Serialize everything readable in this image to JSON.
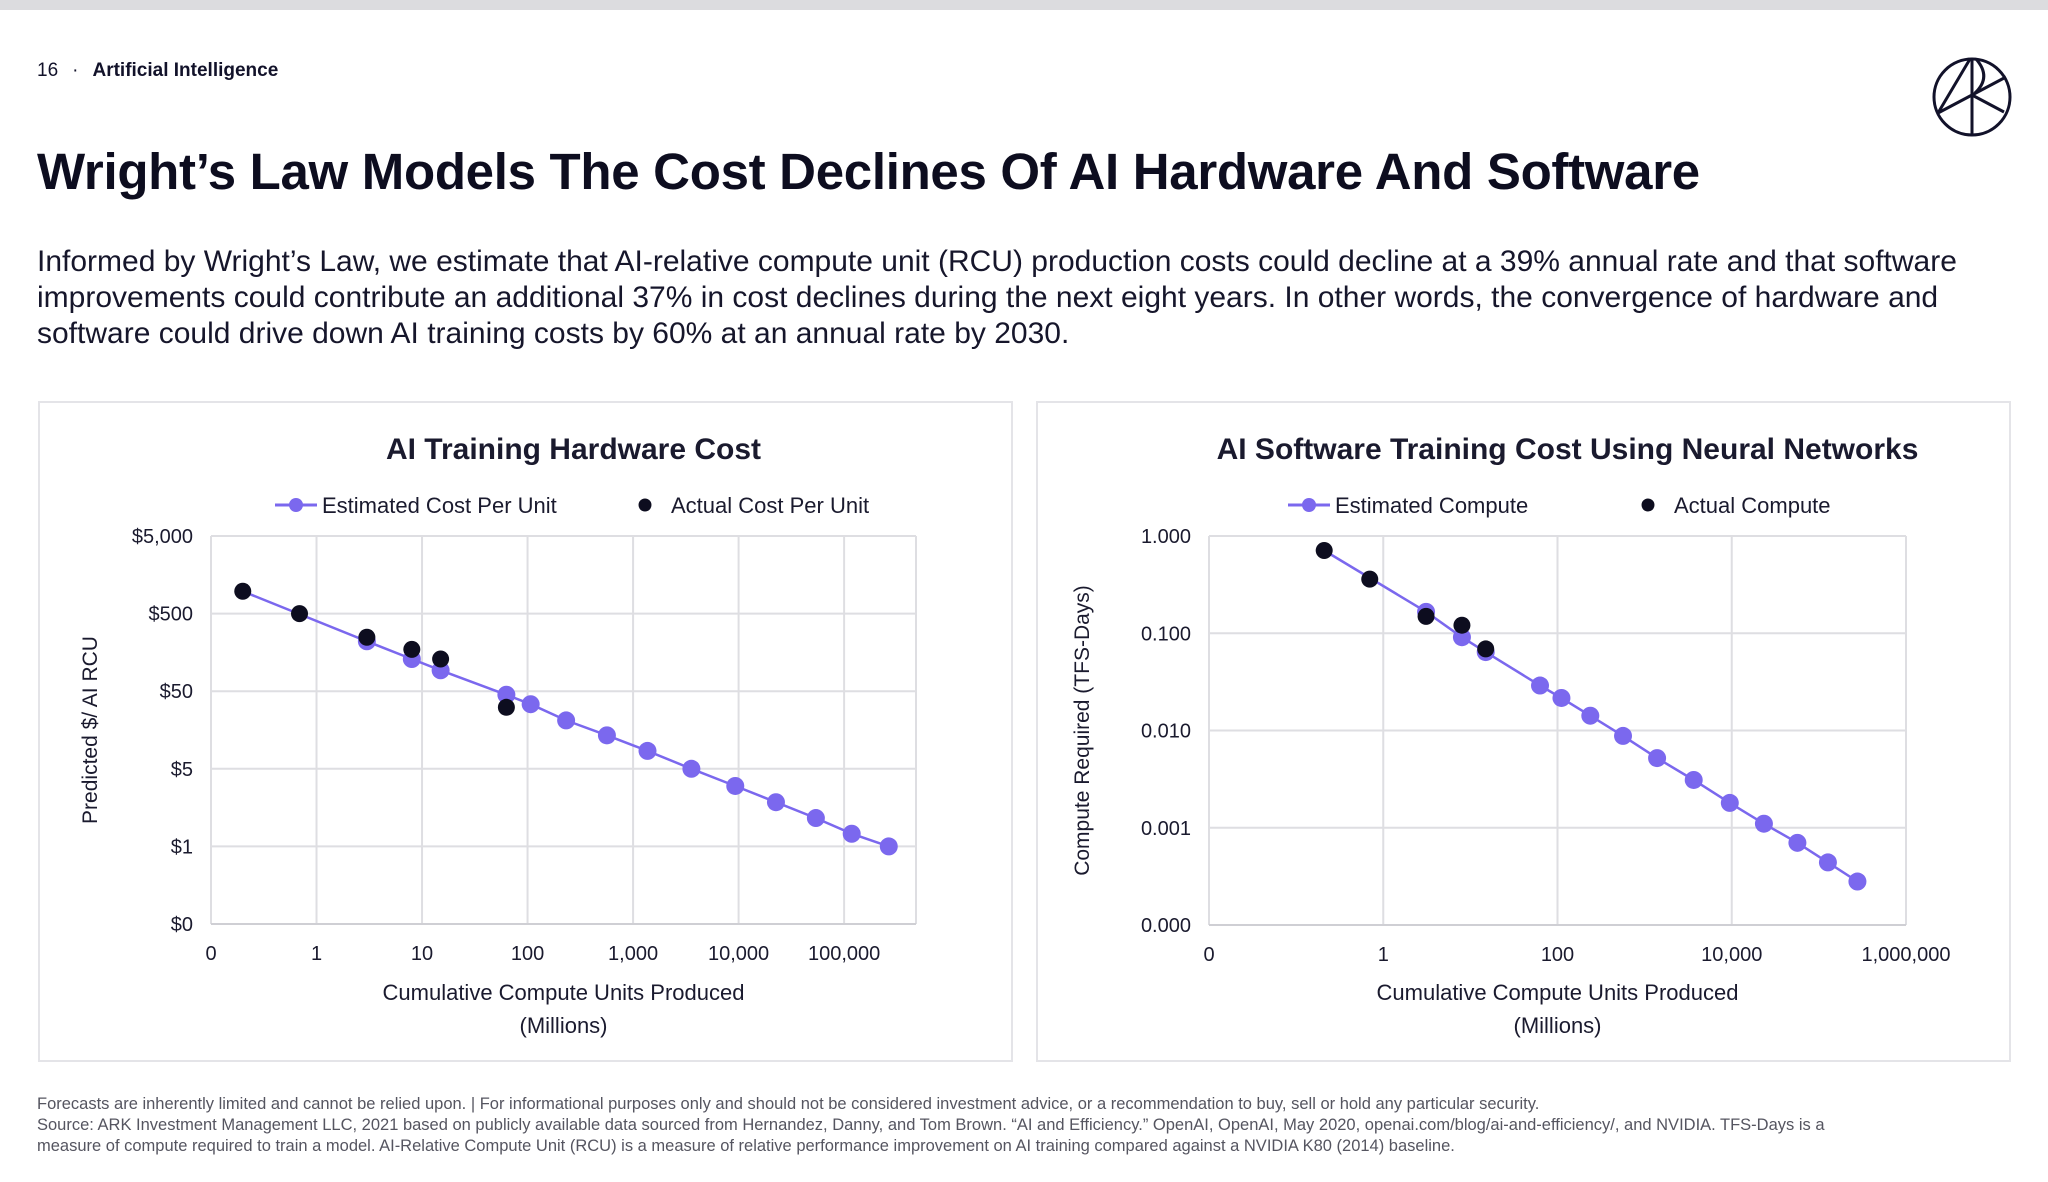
{
  "header": {
    "page_number": "16",
    "separator": "·",
    "section": "Artificial Intelligence"
  },
  "logo": {
    "name": "ARK"
  },
  "title": "Wright’s Law Models The Cost Declines Of AI Hardware And Software",
  "intro": "Informed by Wright’s Law, we estimate that AI-relative compute unit (RCU) production costs could decline at a 39% annual rate and that software improvements could contribute an additional 37% in cost declines during the next eight years. In other words, the convergence of hardware and software could drive down AI training costs by 60% at an annual rate by 2030.",
  "colors": {
    "estimated": "#7b68ee",
    "actual": "#0d0d1f",
    "grid": "#dedee2",
    "text": "#1a1a2e"
  },
  "chart_data": [
    {
      "type": "scatter",
      "title": "AI Training Hardware Cost",
      "xlabel": "Cumulative Compute Units Produced",
      "xlabel_2": "(Millions)",
      "ylabel": "Predicted $/ AI RCU",
      "x_scale": "log",
      "x_ticks": [
        0.1,
        1,
        10,
        100,
        1000,
        10000,
        100000
      ],
      "x_tick_labels": [
        "0",
        "1",
        "10",
        "100",
        "1,000",
        "10,000",
        "100,000"
      ],
      "xlim": [
        0.1,
        480000
      ],
      "y_scale": "log",
      "y_ticks": [
        0.2,
        1,
        5,
        50,
        500,
        5000
      ],
      "y_tick_labels": [
        "$0",
        "$1",
        "$5",
        "$50",
        "$500",
        "$5,000"
      ],
      "grid": true,
      "legend": "top-center",
      "series": [
        {
          "name": "Estimated Cost Per Unit",
          "style": "line-markers",
          "x": [
            3,
            8,
            15,
            63,
            107,
            232,
            565,
            1370,
            3570,
            9300,
            22600,
            54000,
            118000,
            265000
          ],
          "y": [
            220,
            130,
            93,
            45,
            34,
            21,
            13.5,
            8.5,
            5,
            3.5,
            2.5,
            1.8,
            1.3,
            1
          ]
        },
        {
          "name": "Actual Cost Per Unit",
          "style": "markers",
          "x": [
            0.2,
            0.69,
            3,
            8,
            15,
            63
          ],
          "y": [
            970,
            500,
            248,
            173,
            130,
            31
          ]
        }
      ]
    },
    {
      "type": "scatter",
      "title": "AI Software Training Cost Using Neural Networks",
      "xlabel": "Cumulative Compute Units Produced",
      "xlabel_2": "(Millions)",
      "ylabel": "Compute Required (TFS-Days)",
      "x_scale": "log",
      "x_ticks": [
        0.01,
        1,
        100,
        10000,
        1000000
      ],
      "x_tick_labels": [
        "0",
        "1",
        "100",
        "10,000",
        "1,000,000"
      ],
      "xlim": [
        0.01,
        1000000
      ],
      "y_scale": "log",
      "y_ticks": [
        0.0001,
        0.001,
        0.01,
        0.1,
        1
      ],
      "y_tick_labels": [
        "0.000",
        "0.001",
        "0.010",
        "0.100",
        "1.000"
      ],
      "grid": true,
      "legend": "top-center",
      "series": [
        {
          "name": "Estimated Compute",
          "style": "line-markers",
          "x": [
            3.1,
            8,
            15,
            63,
            111,
            238,
            565,
            1390,
            3660,
            9500,
            23400,
            56700,
            127000,
            277000
          ],
          "y": [
            0.166,
            0.091,
            0.064,
            0.029,
            0.0216,
            0.0142,
            0.0088,
            0.0052,
            0.0031,
            0.0018,
            0.0011,
            0.0007,
            0.00044,
            0.00028
          ]
        },
        {
          "name": "Actual Compute",
          "style": "markers",
          "x": [
            0.21,
            0.7,
            3.1,
            8,
            15
          ],
          "y": [
            0.71,
            0.36,
            0.149,
            0.121,
            0.069
          ]
        }
      ]
    }
  ],
  "footer": {
    "line1": "Forecasts are inherently limited and cannot be relied upon. | For informational purposes only and should not be considered investment advice, or a recommendation to buy, sell or hold any particular security.",
    "line2": "Source: ARK Investment Management LLC, 2021 based on publicly available data sourced from Hernandez, Danny, and Tom Brown. “AI and Efficiency.” OpenAI, OpenAI, May 2020, openai.com/blog/ai-and-efficiency/, and NVIDIA. TFS-Days is a",
    "line3": "measure of compute required to train a model. AI-Relative Compute Unit (RCU) is a measure of relative performance improvement on AI training compared against a NVIDIA K80 (2014) baseline."
  }
}
